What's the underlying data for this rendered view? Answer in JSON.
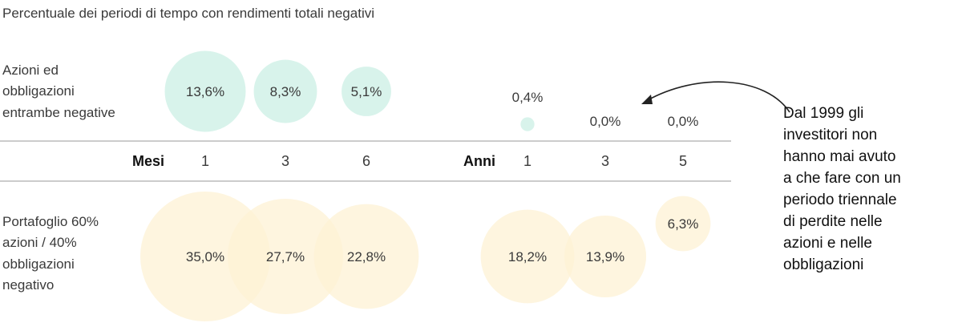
{
  "chart_data": {
    "type": "bubble",
    "title": "Percentuale dei periodi di tempo con rendimenti totali negativi",
    "periods": {
      "months_label": "Mesi",
      "years_label": "Anni",
      "months": [
        "1",
        "3",
        "6"
      ],
      "years": [
        "1",
        "3",
        "5"
      ]
    },
    "series": [
      {
        "label_lines": [
          "Azioni ed",
          "obbligazioni",
          "entrambe negative"
        ],
        "color": "#d6f2ea",
        "values": [
          13.6,
          8.3,
          5.1,
          0.4,
          0.0,
          0.0
        ],
        "value_labels": [
          "13,6%",
          "8,3%",
          "5,1%",
          "0,4%",
          "0,0%",
          "0,0%"
        ]
      },
      {
        "label_lines": [
          "Portafoglio 60%",
          "azioni / 40%",
          "obbligazioni",
          "negativo"
        ],
        "color": "#fdf1d4",
        "values": [
          35.0,
          27.7,
          22.8,
          18.2,
          13.9,
          6.3
        ],
        "value_labels": [
          "35,0%",
          "27,7%",
          "22,8%",
          "18,2%",
          "13,9%",
          "6,3%"
        ]
      }
    ],
    "annotation_lines": [
      "Dal 1999 gli",
      "investitori non",
      "hanno mai avuto",
      "a che fare con un",
      "periodo triennale",
      "di perdite nelle",
      "azioni e nelle",
      "obbligazioni"
    ]
  }
}
